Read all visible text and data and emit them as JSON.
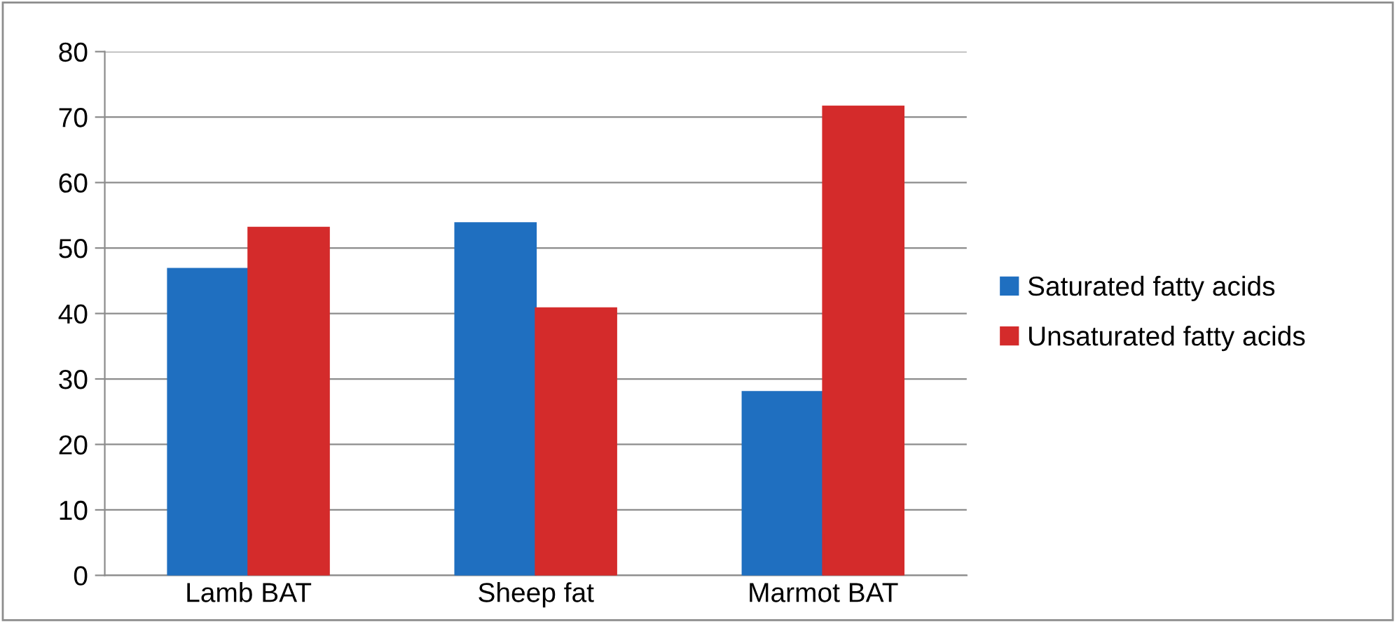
{
  "chart_data": {
    "type": "bar",
    "categories": [
      "Lamb BAT",
      "Sheep fat",
      "Marmot BAT"
    ],
    "series": [
      {
        "name": "Saturated fatty acids",
        "color": "#1f6fc0",
        "values": [
          46.8,
          53.8,
          28.0
        ]
      },
      {
        "name": "Unsaturated fatty acids",
        "color": "#d42b2b",
        "values": [
          53.1,
          40.8,
          71.6
        ]
      }
    ],
    "ylim": [
      0,
      80
    ],
    "yticks": [
      0,
      10,
      20,
      30,
      40,
      50,
      60,
      70,
      80
    ],
    "grid": "y",
    "legend": "right"
  }
}
